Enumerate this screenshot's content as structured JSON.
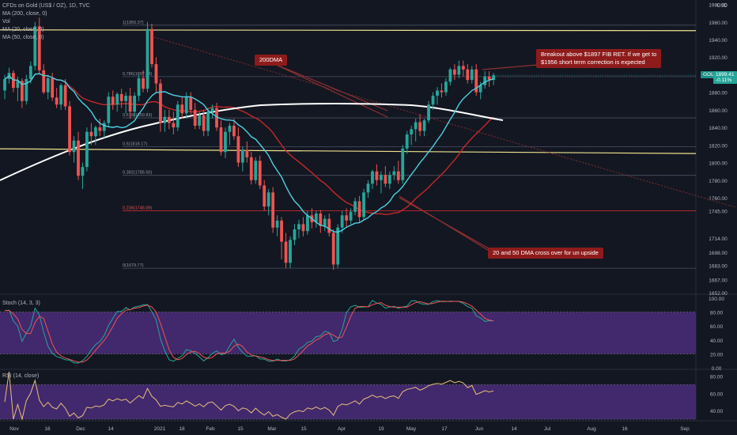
{
  "header": {
    "title": "CFDs on Gold (US$ / OZ), 1D, TVC",
    "indicators": [
      "MA (200, close, 0)",
      "Vol",
      "MA (20, close, 0)",
      "MA (50, close, 0)"
    ]
  },
  "currency": "USD",
  "panels": {
    "stoch_label": "Stoch (14, 3, 3)",
    "rsi_label": "RSI (14, close)"
  },
  "annotations": {
    "dma200": "200DMA",
    "breakout_line1": "Breakout above $1897 FIB RET. If we get to",
    "breakout_line2": "$1956 short term correction is expected",
    "crossover": "20 and 50 DMA cross over for un upside"
  },
  "price_tag": {
    "symbol": "GOLD",
    "price": "1899.41",
    "change": "-0.11%"
  },
  "colors": {
    "background": "#131722",
    "up": "#26a69a",
    "down": "#ef5350",
    "ma20": "#4dd0e1",
    "ma50": "#c62828",
    "ma200": "#ffffff",
    "fib": "#4a5060",
    "key_level": "#f0e28c",
    "note": "#8e1b1b",
    "band": "#4b2c7a"
  },
  "chart_data": {
    "type": "candlestick",
    "x_axis": {
      "ticks": [
        "Nov",
        "16",
        "Dec",
        "14",
        "2021",
        "18",
        "Feb",
        "15",
        "Mar",
        "15",
        "Apr",
        "19",
        "May",
        "17",
        "Jun",
        "14",
        "Jul",
        "Aug",
        "16",
        "Sep"
      ]
    },
    "y_axis": {
      "ticks": [
        "1980.00",
        "1960.00",
        "1940.00",
        "1920.00",
        "1900.00",
        "1880.00",
        "1860.00",
        "1840.00",
        "1820.00",
        "1800.00",
        "1780.00",
        "1760.00",
        "1745.00",
        "1714.00",
        "1698.00",
        "1683.00",
        "1667.00",
        "1652.00"
      ],
      "range": [
        1652,
        1985
      ]
    },
    "fib_levels": [
      {
        "label": "1(1956.37)",
        "value": 1956.37
      },
      {
        "label": "0.786(1897.83)",
        "value": 1897.83
      },
      {
        "label": "0.618(1850.83)",
        "value": 1850.83
      },
      {
        "label": "0.5(1818.17)",
        "value": 1818.17
      },
      {
        "label": "0.382(1785.50)",
        "value": 1785.5
      },
      {
        "label": "0.236(1745.09)",
        "value": 1745.09
      },
      {
        "label": "0(1679.77)",
        "value": 1679.77
      }
    ],
    "key_levels": [
      1951,
      1813
    ],
    "candles": [
      [
        1882,
        1900,
        1872,
        1895
      ],
      [
        1895,
        1908,
        1890,
        1902
      ],
      [
        1902,
        1905,
        1880,
        1885
      ],
      [
        1885,
        1898,
        1870,
        1893
      ],
      [
        1893,
        1896,
        1862,
        1870
      ],
      [
        1870,
        1900,
        1866,
        1895
      ],
      [
        1895,
        1915,
        1890,
        1910
      ],
      [
        1910,
        1960,
        1905,
        1955
      ],
      [
        1955,
        1965,
        1900,
        1905
      ],
      [
        1905,
        1912,
        1878,
        1880
      ],
      [
        1880,
        1900,
        1872,
        1896
      ],
      [
        1896,
        1902,
        1870,
        1874
      ],
      [
        1874,
        1885,
        1862,
        1866
      ],
      [
        1866,
        1890,
        1860,
        1888
      ],
      [
        1888,
        1895,
        1860,
        1864
      ],
      [
        1864,
        1870,
        1808,
        1812
      ],
      [
        1812,
        1830,
        1800,
        1825
      ],
      [
        1825,
        1835,
        1780,
        1785
      ],
      [
        1785,
        1800,
        1770,
        1795
      ],
      [
        1795,
        1840,
        1790,
        1835
      ],
      [
        1835,
        1845,
        1820,
        1830
      ],
      [
        1830,
        1842,
        1820,
        1840
      ],
      [
        1840,
        1850,
        1830,
        1836
      ],
      [
        1836,
        1848,
        1828,
        1845
      ],
      [
        1845,
        1880,
        1840,
        1875
      ],
      [
        1875,
        1882,
        1860,
        1866
      ],
      [
        1866,
        1880,
        1858,
        1878
      ],
      [
        1878,
        1884,
        1862,
        1870
      ],
      [
        1870,
        1880,
        1856,
        1876
      ],
      [
        1876,
        1885,
        1850,
        1858
      ],
      [
        1858,
        1880,
        1852,
        1876
      ],
      [
        1876,
        1900,
        1870,
        1896
      ],
      [
        1896,
        1905,
        1880,
        1884
      ],
      [
        1884,
        1960,
        1880,
        1952
      ],
      [
        1952,
        1958,
        1908,
        1912
      ],
      [
        1912,
        1920,
        1880,
        1890
      ],
      [
        1890,
        1895,
        1835,
        1845
      ],
      [
        1845,
        1860,
        1835,
        1852
      ],
      [
        1852,
        1860,
        1838,
        1845
      ],
      [
        1845,
        1858,
        1832,
        1840
      ],
      [
        1840,
        1870,
        1836,
        1866
      ],
      [
        1866,
        1875,
        1850,
        1856
      ],
      [
        1856,
        1880,
        1850,
        1874
      ],
      [
        1874,
        1880,
        1855,
        1860
      ],
      [
        1860,
        1868,
        1838,
        1842
      ],
      [
        1842,
        1858,
        1838,
        1854
      ],
      [
        1854,
        1860,
        1830,
        1836
      ],
      [
        1836,
        1862,
        1830,
        1858
      ],
      [
        1858,
        1866,
        1850,
        1862
      ],
      [
        1862,
        1868,
        1836,
        1840
      ],
      [
        1840,
        1848,
        1808,
        1812
      ],
      [
        1812,
        1840,
        1805,
        1835
      ],
      [
        1835,
        1845,
        1820,
        1842
      ],
      [
        1842,
        1850,
        1826,
        1830
      ],
      [
        1830,
        1840,
        1795,
        1800
      ],
      [
        1800,
        1818,
        1790,
        1814
      ],
      [
        1814,
        1824,
        1800,
        1806
      ],
      [
        1806,
        1812,
        1775,
        1780
      ],
      [
        1780,
        1806,
        1776,
        1802
      ],
      [
        1802,
        1808,
        1770,
        1774
      ],
      [
        1774,
        1780,
        1745,
        1750
      ],
      [
        1750,
        1770,
        1740,
        1766
      ],
      [
        1766,
        1772,
        1720,
        1726
      ],
      [
        1726,
        1740,
        1716,
        1734
      ],
      [
        1734,
        1738,
        1690,
        1710
      ],
      [
        1710,
        1720,
        1680,
        1686
      ],
      [
        1686,
        1716,
        1680,
        1712
      ],
      [
        1712,
        1730,
        1706,
        1724
      ],
      [
        1724,
        1735,
        1714,
        1730
      ],
      [
        1730,
        1738,
        1716,
        1722
      ],
      [
        1722,
        1745,
        1718,
        1740
      ],
      [
        1740,
        1748,
        1725,
        1732
      ],
      [
        1732,
        1745,
        1726,
        1742
      ],
      [
        1742,
        1746,
        1720,
        1728
      ],
      [
        1728,
        1740,
        1722,
        1736
      ],
      [
        1736,
        1742,
        1716,
        1720
      ],
      [
        1720,
        1724,
        1678,
        1684
      ],
      [
        1684,
        1730,
        1680,
        1726
      ],
      [
        1726,
        1745,
        1720,
        1740
      ],
      [
        1740,
        1748,
        1726,
        1734
      ],
      [
        1734,
        1748,
        1730,
        1744
      ],
      [
        1744,
        1760,
        1740,
        1756
      ],
      [
        1756,
        1762,
        1732,
        1738
      ],
      [
        1738,
        1770,
        1734,
        1766
      ],
      [
        1766,
        1780,
        1760,
        1776
      ],
      [
        1776,
        1792,
        1770,
        1790
      ],
      [
        1790,
        1798,
        1774,
        1780
      ],
      [
        1780,
        1790,
        1765,
        1786
      ],
      [
        1786,
        1796,
        1772,
        1776
      ],
      [
        1776,
        1790,
        1770,
        1786
      ],
      [
        1786,
        1796,
        1780,
        1790
      ],
      [
        1790,
        1802,
        1776,
        1780
      ],
      [
        1780,
        1820,
        1776,
        1816
      ],
      [
        1816,
        1836,
        1810,
        1832
      ],
      [
        1832,
        1842,
        1820,
        1838
      ],
      [
        1838,
        1850,
        1824,
        1846
      ],
      [
        1846,
        1855,
        1830,
        1836
      ],
      [
        1836,
        1850,
        1830,
        1848
      ],
      [
        1848,
        1870,
        1845,
        1866
      ],
      [
        1866,
        1880,
        1860,
        1876
      ],
      [
        1876,
        1886,
        1866,
        1882
      ],
      [
        1882,
        1890,
        1874,
        1880
      ],
      [
        1880,
        1896,
        1876,
        1892
      ],
      [
        1892,
        1908,
        1888,
        1906
      ],
      [
        1906,
        1912,
        1894,
        1900
      ],
      [
        1900,
        1916,
        1896,
        1910
      ],
      [
        1910,
        1916,
        1898,
        1906
      ],
      [
        1906,
        1912,
        1890,
        1894
      ],
      [
        1894,
        1910,
        1890,
        1906
      ],
      [
        1906,
        1912,
        1876,
        1880
      ],
      [
        1880,
        1892,
        1872,
        1888
      ],
      [
        1888,
        1904,
        1884,
        1898
      ],
      [
        1898,
        1904,
        1886,
        1894
      ],
      [
        1894,
        1902,
        1888,
        1899.41
      ]
    ],
    "stoch": {
      "range": [
        0,
        100
      ],
      "bands": [
        20,
        80
      ],
      "ticks": [
        "100.00",
        "80.00",
        "60.00",
        "40.00",
        "20.00",
        "0.00"
      ]
    },
    "rsi": {
      "range": [
        30,
        85
      ],
      "bands": [
        30,
        70
      ],
      "ticks": [
        "80.00",
        "60.00",
        "40.00"
      ]
    }
  }
}
